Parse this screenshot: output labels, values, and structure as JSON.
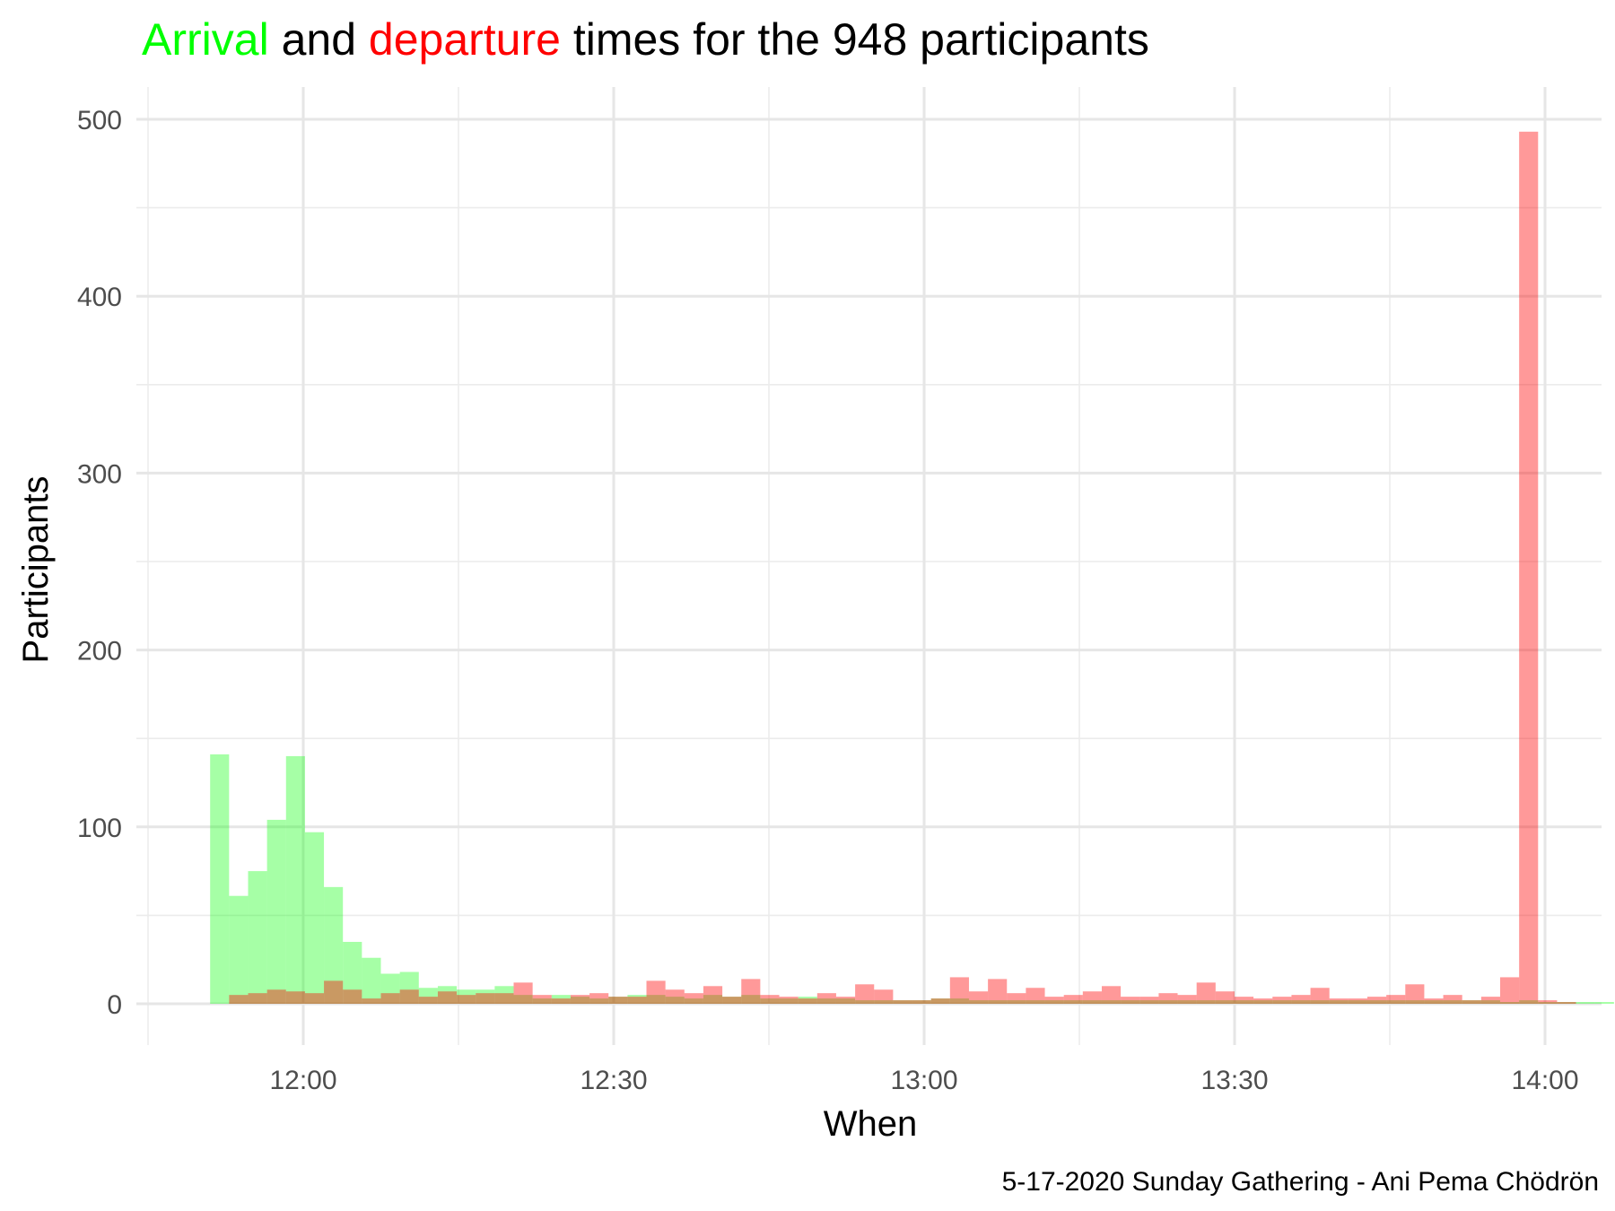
{
  "chart_data": {
    "type": "histogram",
    "title": {
      "arrival_word": "Arrival",
      "and_word": " and ",
      "departure_word": "departure",
      "rest": " times for the 948 participants"
    },
    "xlabel": "When",
    "ylabel": "Participants",
    "caption": "5-17-2020 Sunday Gathering - Ani Pema Chödrön",
    "x_ticks": [
      "12:00",
      "12:30",
      "13:00",
      "13:30",
      "14:00"
    ],
    "x_tick_values": [
      720,
      750,
      780,
      810,
      840
    ],
    "x_minor_values": [
      705,
      735,
      765,
      795,
      825
    ],
    "y_ticks": [
      0,
      100,
      200,
      300,
      400,
      500
    ],
    "y_minor_values": [
      50,
      150,
      250,
      350,
      450
    ],
    "xlim": [
      "11:45",
      "14:05"
    ],
    "ylim": [
      -25,
      525
    ],
    "grid": true,
    "bin_width_minutes": 1.8333,
    "series": [
      {
        "name": "Arrival",
        "color": "#00ff00",
        "x_start": "11:51",
        "values": [
          141,
          61,
          75,
          104,
          140,
          97,
          66,
          35,
          26,
          17,
          18,
          9,
          10,
          8,
          8,
          10,
          5,
          3,
          5,
          4,
          3,
          4,
          5,
          5,
          4,
          3,
          5,
          4,
          5,
          3,
          3,
          4,
          3,
          3,
          2,
          2,
          2,
          2,
          3,
          3,
          2,
          2,
          2,
          2,
          2,
          2,
          2,
          2,
          2,
          2,
          2,
          2,
          2,
          2,
          2,
          2,
          2,
          2,
          2,
          2,
          2,
          2,
          2,
          2,
          2,
          2,
          2,
          2,
          1,
          2,
          1,
          1,
          1,
          1,
          0,
          0,
          0
        ]
      },
      {
        "name": "Departure",
        "color": "#ff0000",
        "x_start": "11:51",
        "values": [
          0,
          5,
          6,
          8,
          7,
          6,
          13,
          8,
          3,
          6,
          8,
          4,
          7,
          5,
          6,
          6,
          12,
          5,
          3,
          5,
          6,
          4,
          4,
          13,
          8,
          6,
          10,
          4,
          14,
          5,
          4,
          3,
          6,
          4,
          11,
          8,
          2,
          2,
          3,
          15,
          7,
          14,
          6,
          9,
          4,
          5,
          7,
          10,
          4,
          4,
          6,
          5,
          12,
          7,
          4,
          3,
          4,
          5,
          9,
          3,
          3,
          4,
          5,
          11,
          3,
          5,
          2,
          4,
          15,
          493,
          2,
          1,
          0,
          0,
          0,
          0,
          0
        ]
      }
    ]
  }
}
